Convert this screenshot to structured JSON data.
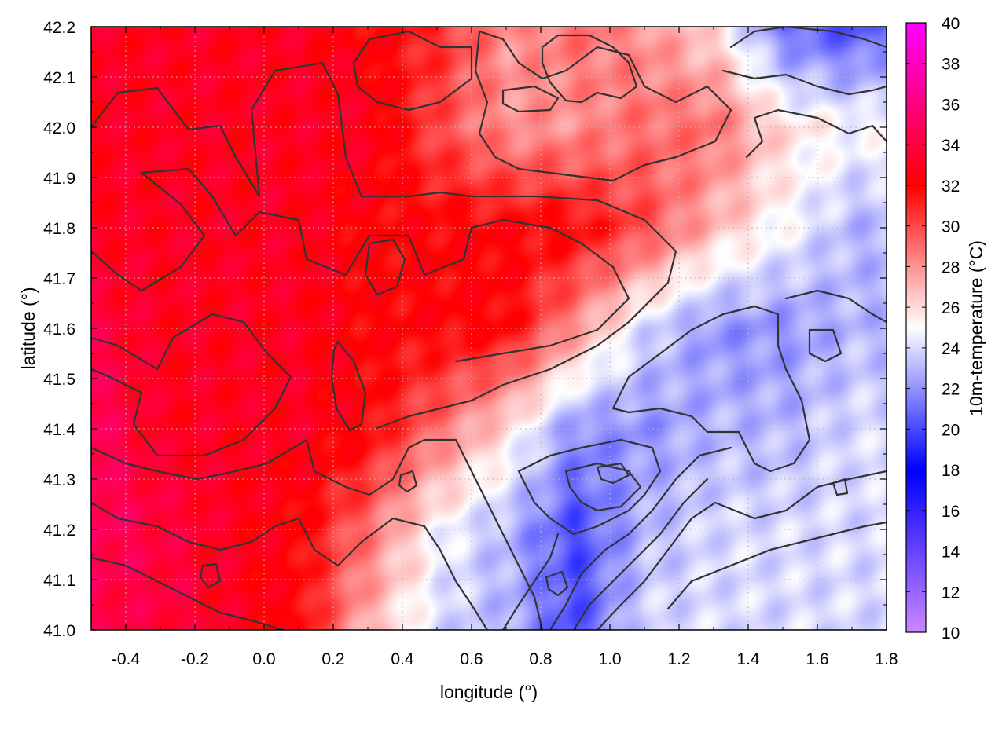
{
  "chart_data": {
    "type": "heatmap",
    "title": "",
    "xlabel": "longitude (°)",
    "ylabel": "latitude (°)",
    "colorbar_label": "10m-temperature (°C)",
    "xlim": [
      -0.5,
      1.8
    ],
    "ylim": [
      41.0,
      42.2
    ],
    "clim": [
      10,
      40
    ],
    "x_ticks": [
      "-0.4",
      "-0.2",
      "0.0",
      "0.2",
      "0.4",
      "0.6",
      "0.8",
      "1.0",
      "1.2",
      "1.4",
      "1.6",
      "1.8"
    ],
    "y_ticks": [
      "41.0",
      "41.1",
      "41.2",
      "41.3",
      "41.4",
      "41.5",
      "41.6",
      "41.7",
      "41.8",
      "41.9",
      "42.0",
      "42.1",
      "42.2"
    ],
    "colorbar_ticks": [
      "10",
      "12",
      "14",
      "16",
      "18",
      "20",
      "22",
      "24",
      "26",
      "28",
      "30",
      "32",
      "34",
      "36",
      "38",
      "40"
    ],
    "grid": true,
    "colormap": [
      {
        "value": 10,
        "color": "#cc88ff"
      },
      {
        "value": 18,
        "color": "#0000ff"
      },
      {
        "value": 25,
        "color": "#ffffff"
      },
      {
        "value": 32,
        "color": "#ff0000"
      },
      {
        "value": 40,
        "color": "#ff00ff"
      }
    ],
    "temperature_field": {
      "lon": [
        -0.5,
        -0.3,
        -0.1,
        0.1,
        0.3,
        0.5,
        0.7,
        0.9,
        1.1,
        1.3,
        1.5,
        1.7,
        1.8
      ],
      "lat": [
        42.2,
        42.0,
        41.8,
        41.6,
        41.4,
        41.2,
        41.0
      ],
      "values": [
        [
          33,
          33,
          33,
          33,
          32,
          31,
          28,
          29,
          28,
          26,
          21,
          20,
          21
        ],
        [
          33,
          33,
          33,
          33,
          33,
          30,
          28,
          28,
          29,
          29,
          26,
          25,
          25
        ],
        [
          33,
          33,
          33,
          33,
          32,
          32,
          32,
          32,
          30,
          27,
          25,
          23,
          23
        ],
        [
          34,
          33,
          33,
          33,
          32,
          32,
          32,
          28,
          24,
          22,
          22,
          23,
          23
        ],
        [
          35,
          33,
          33,
          33,
          32,
          29,
          26,
          22,
          22,
          23,
          23,
          24,
          24
        ],
        [
          35,
          34,
          33,
          32,
          29,
          25,
          23,
          20,
          23,
          24,
          24,
          24,
          24
        ],
        [
          34,
          34,
          33,
          32,
          27,
          24,
          23,
          20,
          24,
          24,
          24,
          24,
          24
        ]
      ]
    }
  }
}
